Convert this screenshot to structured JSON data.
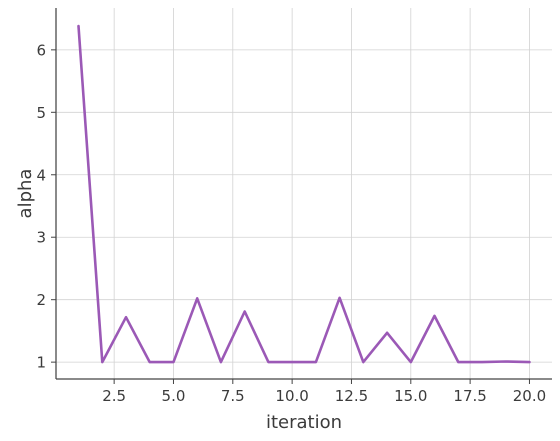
{
  "chart_data": {
    "type": "line",
    "xlabel": "iteration",
    "ylabel": "alpha",
    "xlim": [
      0.05,
      20.95
    ],
    "ylim": [
      0.73,
      6.67
    ],
    "xticks": [
      2.5,
      5.0,
      7.5,
      10.0,
      12.5,
      15.0,
      17.5,
      20.0
    ],
    "xtick_labels": [
      "2.5",
      "5.0",
      "7.5",
      "10.0",
      "12.5",
      "15.0",
      "17.5",
      "20.0"
    ],
    "yticks": [
      1,
      2,
      3,
      4,
      5,
      6
    ],
    "ytick_labels": [
      "1",
      "2",
      "3",
      "4",
      "5",
      "6"
    ],
    "grid": true,
    "series": [
      {
        "color": "#9b59b6",
        "x": [
          1,
          2,
          3,
          4,
          5,
          6,
          7,
          8,
          9,
          10,
          11,
          12,
          13,
          14,
          15,
          16,
          17,
          18,
          19,
          20
        ],
        "y": [
          6.38,
          1.0,
          1.72,
          1.0,
          1.0,
          2.02,
          1.0,
          1.81,
          1.0,
          1.0,
          1.0,
          2.03,
          1.0,
          1.47,
          1.0,
          1.74,
          1.0,
          1.0,
          1.01,
          1.0
        ]
      }
    ]
  }
}
